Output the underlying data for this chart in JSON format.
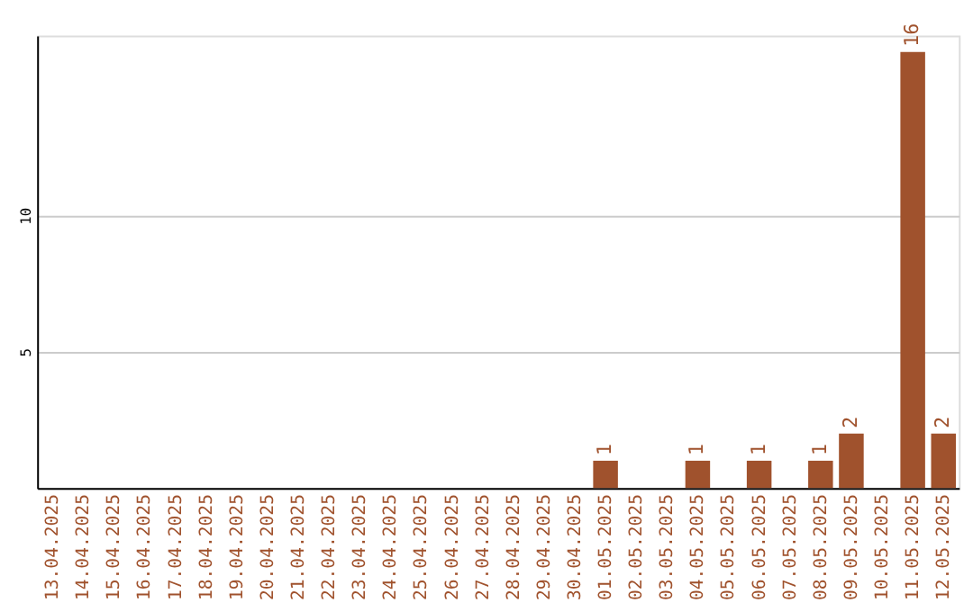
{
  "chart_data": {
    "type": "bar",
    "categories": [
      "13.04.2025",
      "14.04.2025",
      "15.04.2025",
      "16.04.2025",
      "17.04.2025",
      "18.04.2025",
      "19.04.2025",
      "20.04.2025",
      "21.04.2025",
      "22.04.2025",
      "23.04.2025",
      "24.04.2025",
      "25.04.2025",
      "26.04.2025",
      "27.04.2025",
      "28.04.2025",
      "29.04.2025",
      "30.04.2025",
      "01.05.2025",
      "02.05.2025",
      "03.05.2025",
      "04.05.2025",
      "05.05.2025",
      "06.05.2025",
      "07.05.2025",
      "08.05.2025",
      "09.05.2025",
      "10.05.2025",
      "11.05.2025",
      "12.05.2025"
    ],
    "values": [
      null,
      null,
      null,
      null,
      null,
      null,
      null,
      null,
      null,
      null,
      null,
      null,
      null,
      null,
      null,
      null,
      null,
      null,
      1,
      null,
      null,
      1,
      null,
      1,
      null,
      1,
      2,
      null,
      16,
      2
    ],
    "value_labels": [
      null,
      null,
      null,
      null,
      null,
      null,
      null,
      null,
      null,
      null,
      null,
      null,
      null,
      null,
      null,
      null,
      null,
      null,
      "1",
      null,
      null,
      "1",
      null,
      "1",
      null,
      "1",
      "2",
      null,
      "16",
      "2"
    ],
    "color": "#a0522d",
    "ylim": [
      0,
      16.6
    ],
    "yticks": [
      5,
      10
    ],
    "grid": "y"
  }
}
